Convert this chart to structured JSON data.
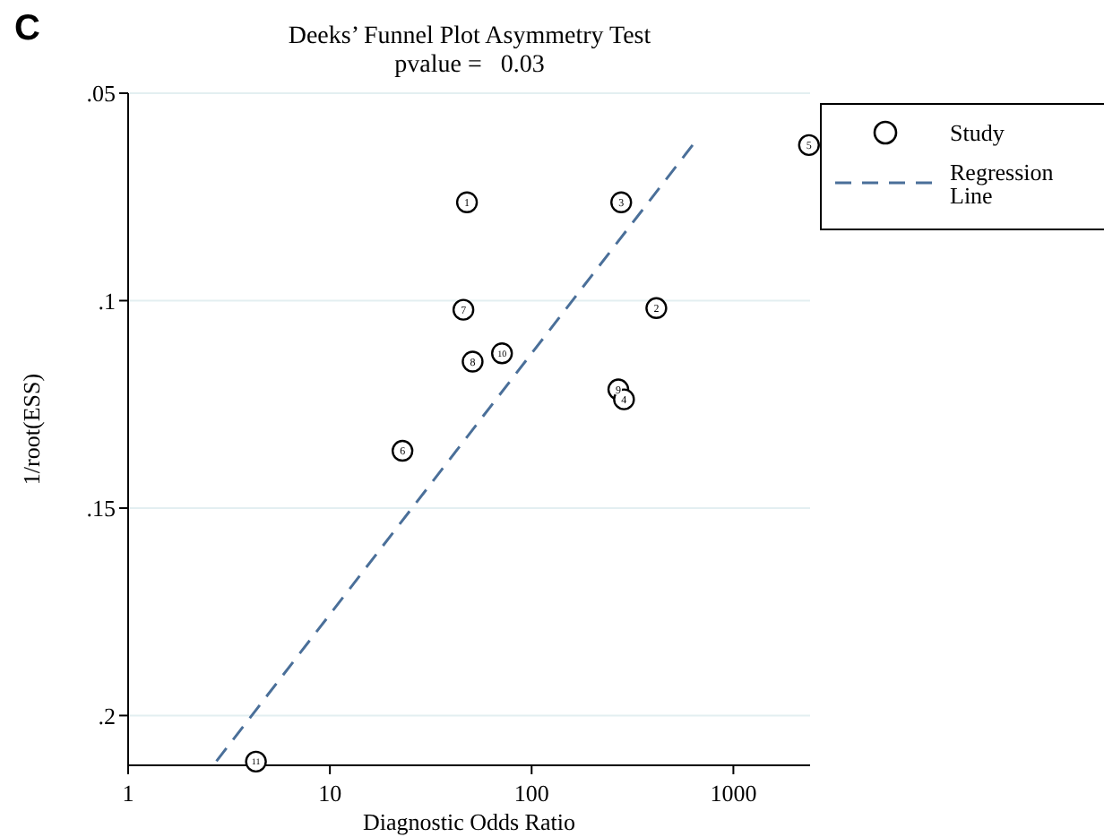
{
  "chart_data": {
    "type": "scatter",
    "title": "Deeks’ Funnel Plot Asymmetry Test",
    "subtitle": "pvalue =   0.03",
    "xlabel": "Diagnostic Odds Ratio",
    "ylabel": "1/root(ESS)",
    "log": "x",
    "xlim": [
      1,
      2400
    ],
    "xticks": [
      1,
      10,
      100,
      1000
    ],
    "ylim": [
      0.212,
      0.05
    ],
    "yticks": [
      {
        "value": 0.05,
        "label": ".05"
      },
      {
        "value": 0.1,
        "label": ".1"
      },
      {
        "value": 0.15,
        "label": ".15"
      },
      {
        "value": 0.2,
        "label": ".2"
      }
    ],
    "grid": "y",
    "legend": "top right",
    "series": [
      {
        "name": "Study",
        "color": "#000000",
        "marker": "circle",
        "x": [
          47.8,
          415,
          278,
          287,
          2370,
          22.9,
          45.9,
          51,
          269,
          71.3,
          4.3
        ],
        "values": [
          0.0763,
          0.1018,
          0.0763,
          0.1238,
          0.0625,
          0.1362,
          0.1022,
          0.1147,
          0.1214,
          0.1127,
          0.2111
        ]
      },
      {
        "name": "Regression Line",
        "type": "line",
        "color": "#4a6f99",
        "line_style": "dashed",
        "marker": "none",
        "x": [
          2.74,
          628
        ],
        "values": [
          0.211,
          0.0625
        ]
      }
    ],
    "annotations": [
      "C",
      {
        "text": "1",
        "x": 47.8,
        "y": 0.0763
      },
      {
        "text": "2",
        "x": 415,
        "y": 0.1018
      },
      {
        "text": "3",
        "x": 278,
        "y": 0.0763
      },
      {
        "text": "4",
        "x": 287,
        "y": 0.1238
      },
      {
        "text": "5",
        "x": 2370,
        "y": 0.0625
      },
      {
        "text": "6",
        "x": 22.9,
        "y": 0.1362
      },
      {
        "text": "7",
        "x": 45.9,
        "y": 0.1022
      },
      {
        "text": "8",
        "x": 51,
        "y": 0.1147
      },
      {
        "text": "9",
        "x": 269,
        "y": 0.1214
      },
      {
        "text": "10",
        "x": 71.3,
        "y": 0.1127
      },
      {
        "text": "11",
        "x": 4.3,
        "y": 0.2111
      }
    ]
  }
}
